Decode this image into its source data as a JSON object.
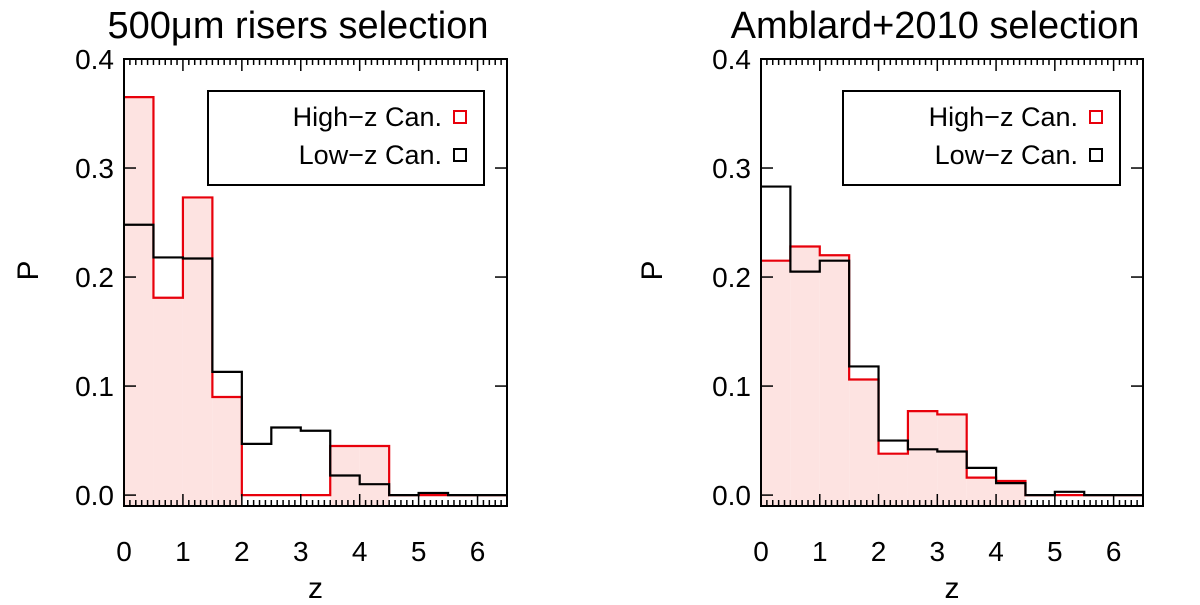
{
  "chart_data": [
    {
      "type": "histogram",
      "title": "500μm risers selection",
      "xlabel": "z",
      "ylabel": "P",
      "xlim": [
        0,
        6.5
      ],
      "ylim": [
        -0.01,
        0.4
      ],
      "xticks": [
        "0",
        "1",
        "2",
        "3",
        "4",
        "5",
        "6"
      ],
      "yticks": [
        "0.0",
        "0.1",
        "0.2",
        "0.3",
        "0.4"
      ],
      "bin_edges": [
        0,
        0.5,
        1,
        1.5,
        2,
        2.5,
        3,
        3.5,
        4,
        4.5,
        5,
        5.5,
        6,
        6.5
      ],
      "legend_position": "top-right",
      "series": [
        {
          "name": "High−z Can.",
          "color": "#e8000b",
          "fill": "#fde3e1",
          "values": [
            0.365,
            0.181,
            0.273,
            0.09,
            0.0,
            0.0,
            0.0,
            0.045,
            0.045,
            0.0,
            0.0,
            0.0,
            0.0
          ]
        },
        {
          "name": "Low−z Can.",
          "color": "#000000",
          "values": [
            0.248,
            0.218,
            0.217,
            0.113,
            0.047,
            0.062,
            0.059,
            0.018,
            0.01,
            0.0,
            0.002,
            0.0,
            0.0
          ]
        }
      ]
    },
    {
      "type": "histogram",
      "title": "Amblard+2010 selection",
      "xlabel": "z",
      "ylabel": "P",
      "xlim": [
        0,
        6.5
      ],
      "ylim": [
        -0.01,
        0.4
      ],
      "xticks": [
        "0",
        "1",
        "2",
        "3",
        "4",
        "5",
        "6"
      ],
      "yticks": [
        "0.0",
        "0.1",
        "0.2",
        "0.3",
        "0.4"
      ],
      "bin_edges": [
        0,
        0.5,
        1,
        1.5,
        2,
        2.5,
        3,
        3.5,
        4,
        4.5,
        5,
        5.5,
        6,
        6.5
      ],
      "legend_position": "top-right",
      "series": [
        {
          "name": "High−z Can.",
          "color": "#e8000b",
          "fill": "#fde3e1",
          "values": [
            0.215,
            0.228,
            0.22,
            0.106,
            0.038,
            0.077,
            0.074,
            0.016,
            0.013,
            0.0,
            0.0,
            0.0,
            0.0
          ]
        },
        {
          "name": "Low−z Can.",
          "color": "#000000",
          "values": [
            0.283,
            0.205,
            0.215,
            0.118,
            0.05,
            0.042,
            0.04,
            0.025,
            0.011,
            0.0,
            0.003,
            0.0,
            0.0
          ]
        }
      ]
    }
  ]
}
